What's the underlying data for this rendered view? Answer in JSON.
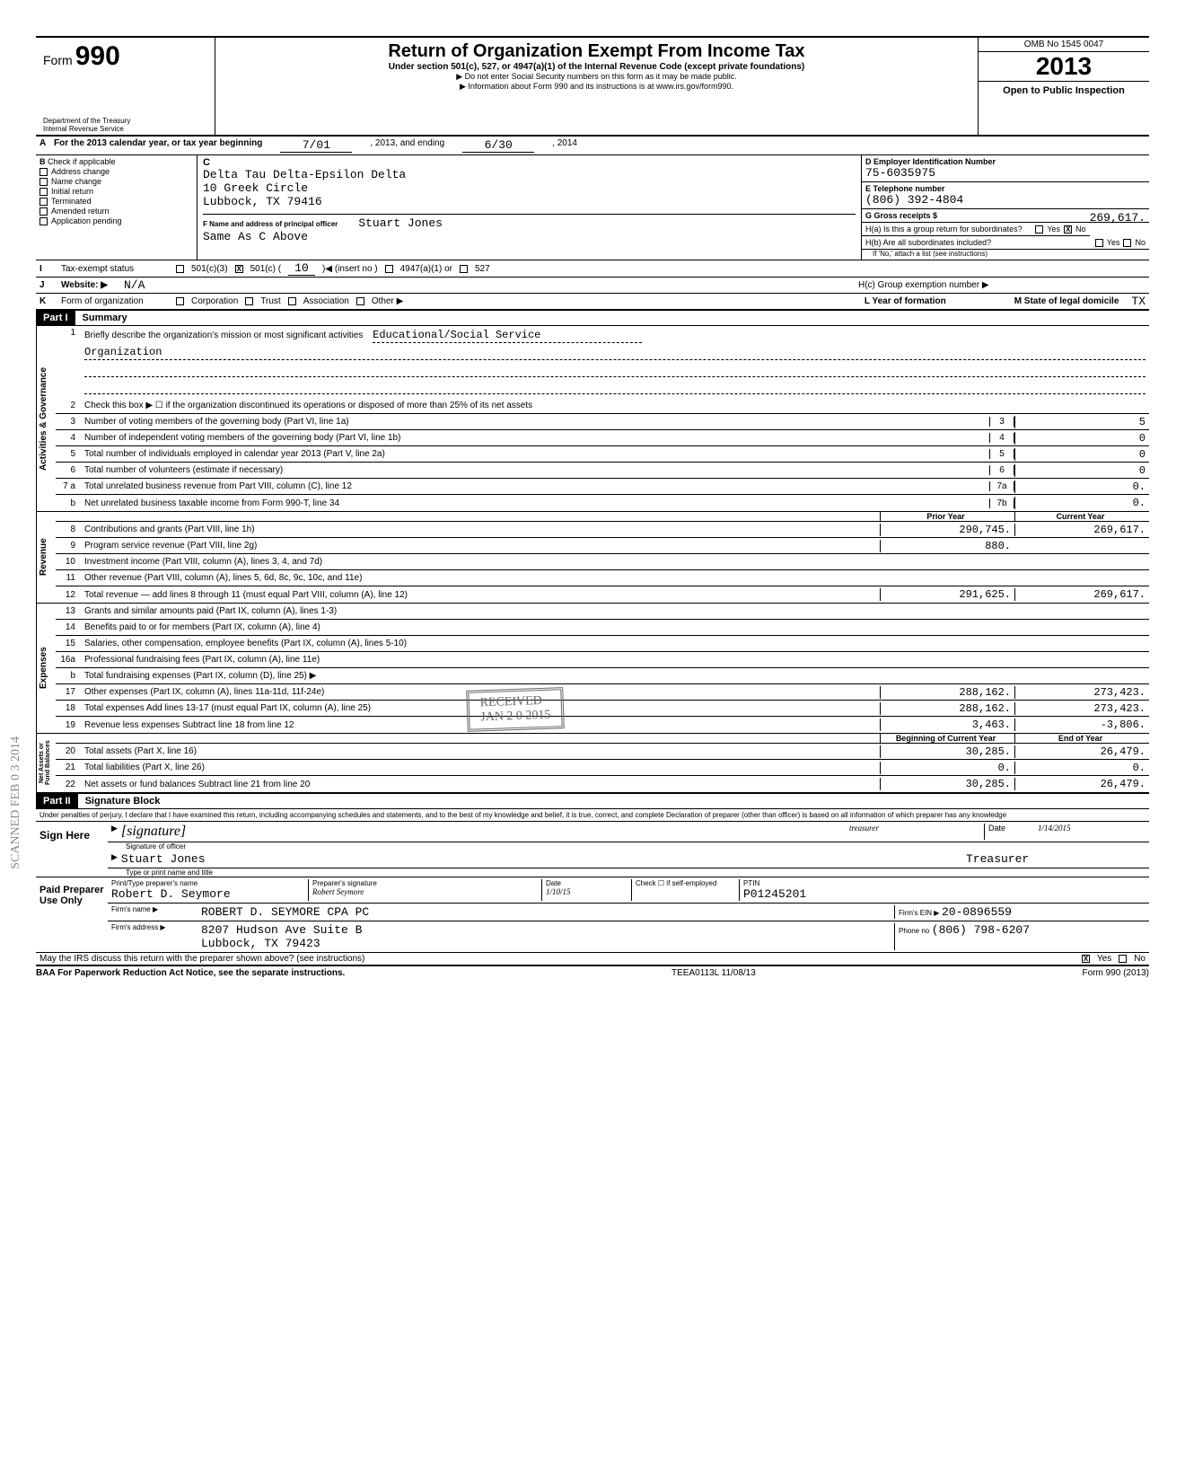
{
  "header": {
    "form_label": "Form",
    "form_number": "990",
    "dept": "Department of the Treasury\nInternal Revenue Service",
    "title": "Return of Organization Exempt From Income Tax",
    "subtitle": "Under section 501(c), 527, or 4947(a)(1) of the Internal Revenue Code (except private foundations)",
    "note1": "▶ Do not enter Social Security numbers on this form as it may be made public.",
    "note2": "▶ Information about Form 990 and its instructions is at www.irs.gov/form990.",
    "omb": "OMB No  1545 0047",
    "year": "2013",
    "open": "Open to Public Inspection"
  },
  "lineA": {
    "label": "For the 2013 calendar year, or tax year beginning",
    "begin": "7/01",
    "mid": ", 2013, and ending",
    "end": "6/30",
    "endyear": ", 2014"
  },
  "B": {
    "label": "Check if applicable",
    "items": [
      "Address change",
      "Name change",
      "Initial return",
      "Terminated",
      "Amended return",
      "Application pending"
    ]
  },
  "C": {
    "label": "C",
    "name": "Delta Tau Delta-Epsilon Delta",
    "addr1": "10 Greek Circle",
    "addr2": "Lubbock, TX 79416"
  },
  "D": {
    "label": "D  Employer Identification Number",
    "value": "75-6035975"
  },
  "E": {
    "label": "E  Telephone number",
    "value": "(806) 392-4804"
  },
  "G": {
    "label": "G  Gross receipts $",
    "value": "269,617."
  },
  "F": {
    "label": "F  Name and address of principal officer",
    "name": "Stuart Jones",
    "addr": "Same As C Above"
  },
  "H": {
    "a": "H(a) Is this a group return for subordinates?",
    "b": "H(b) Are all subordinates included?",
    "b_note": "If 'No,' attach a list  (see instructions)",
    "c": "H(c) Group exemption number ▶",
    "yes": "Yes",
    "no": "No"
  },
  "I": {
    "label": "Tax-exempt status",
    "opts": [
      "501(c)(3)",
      "501(c) (",
      "10",
      ")◀  (insert no )",
      "4947(a)(1) or",
      "527"
    ]
  },
  "J": {
    "label": "Website: ▶",
    "value": "N/A"
  },
  "K": {
    "form_of_org": "Form of organization",
    "opts": [
      "Corporation",
      "Trust",
      "Association",
      "Other ▶"
    ],
    "L": "L Year of formation",
    "M": "M State of legal domicile",
    "M_val": "TX"
  },
  "part1": {
    "label": "Part I",
    "title": "Summary"
  },
  "mission": {
    "prompt": "Briefly describe the organization's mission or most significant activities",
    "text1": "Educational/Social Service",
    "text2": "Organization"
  },
  "gov_lines": [
    {
      "no": "2",
      "txt": "Check this box ▶ ☐  if the organization discontinued its operations or disposed of more than 25% of its net assets"
    },
    {
      "no": "3",
      "txt": "Number of voting members of the governing body (Part VI, line 1a)",
      "box": "3",
      "val": "5"
    },
    {
      "no": "4",
      "txt": "Number of independent voting members of the governing body (Part VI, line 1b)",
      "box": "4",
      "val": "0"
    },
    {
      "no": "5",
      "txt": "Total number of individuals employed in calendar year 2013 (Part V, line 2a)",
      "box": "5",
      "val": "0"
    },
    {
      "no": "6",
      "txt": "Total number of volunteers (estimate if necessary)",
      "box": "6",
      "val": "0"
    },
    {
      "no": "7 a",
      "txt": "Total unrelated business revenue from Part VIII, column (C), line 12",
      "box": "7a",
      "val": "0."
    },
    {
      "no": "b",
      "txt": "Net unrelated business taxable income from Form 990-T, line 34",
      "box": "7b",
      "val": "0."
    }
  ],
  "cols": {
    "prior": "Prior Year",
    "current": "Current Year",
    "boy": "Beginning of Current Year",
    "eoy": "End of Year"
  },
  "revenue": [
    {
      "no": "8",
      "txt": "Contributions and grants (Part VIII, line 1h)",
      "p": "290,745.",
      "c": "269,617."
    },
    {
      "no": "9",
      "txt": "Program service revenue (Part VIII, line 2g)",
      "p": "880.",
      "c": ""
    },
    {
      "no": "10",
      "txt": "Investment income (Part VIII, column (A), lines 3, 4, and 7d)",
      "p": "",
      "c": ""
    },
    {
      "no": "11",
      "txt": "Other revenue (Part VIII, column (A), lines 5, 6d, 8c, 9c, 10c, and 11e)",
      "p": "",
      "c": ""
    },
    {
      "no": "12",
      "txt": "Total revenue — add lines 8 through 11 (must equal Part VIII, column (A), line 12)",
      "p": "291,625.",
      "c": "269,617."
    }
  ],
  "expenses": [
    {
      "no": "13",
      "txt": "Grants and similar amounts paid (Part IX, column (A), lines 1-3)",
      "p": "",
      "c": ""
    },
    {
      "no": "14",
      "txt": "Benefits paid to or for members (Part IX, column (A), line 4)",
      "p": "",
      "c": ""
    },
    {
      "no": "15",
      "txt": "Salaries, other compensation, employee benefits (Part IX, column (A), lines 5-10)",
      "p": "",
      "c": ""
    },
    {
      "no": "16a",
      "txt": "Professional fundraising fees (Part IX, column (A), line 11e)",
      "p": "",
      "c": ""
    },
    {
      "no": "b",
      "txt": "Total fundraising expenses (Part IX, column (D), line 25) ▶",
      "shade": true
    },
    {
      "no": "17",
      "txt": "Other expenses (Part IX, column (A), lines 11a-11d, 11f-24e)",
      "p": "288,162.",
      "c": "273,423."
    },
    {
      "no": "18",
      "txt": "Total expenses  Add lines 13-17 (must equal Part IX, column (A), line 25)",
      "p": "288,162.",
      "c": "273,423."
    },
    {
      "no": "19",
      "txt": "Revenue less expenses  Subtract line 18 from line 12",
      "p": "3,463.",
      "c": "-3,806."
    }
  ],
  "netassets": [
    {
      "no": "20",
      "txt": "Total assets (Part X, line 16)",
      "p": "30,285.",
      "c": "26,479."
    },
    {
      "no": "21",
      "txt": "Total liabilities (Part X, line 26)",
      "p": "0.",
      "c": "0."
    },
    {
      "no": "22",
      "txt": "Net assets or fund balances  Subtract line 21 from line 20",
      "p": "30,285.",
      "c": "26,479."
    }
  ],
  "side_labels": {
    "gov": "Activities & Governance",
    "rev": "Revenue",
    "exp": "Expenses",
    "net": "Net Assets or\nFund Balances"
  },
  "part2": {
    "label": "Part II",
    "title": "Signature Block"
  },
  "perjury": "Under penalties of perjury, I declare that I have examined this return, including accompanying schedules and statements, and to the best of my knowledge and belief, it is true, correct, and complete  Declaration of preparer (other than officer) is based on all information of which preparer has any knowledge",
  "sign": {
    "here": "Sign Here",
    "sig_label": "Signature of officer",
    "sig_role": "treasurer",
    "date": "1/14/2015",
    "date_label": "Date",
    "name": "Stuart Jones",
    "title": "Treasurer",
    "name_label": "Type or print name and title"
  },
  "preparer": {
    "label": "Paid Preparer Use Only",
    "print_label": "Print/Type preparer's name",
    "print_name": "Robert D. Seymore",
    "sig_label": "Preparer's signature",
    "sig": "Robert Seymore",
    "date_label": "Date",
    "date": "1/10/15",
    "check_label": "Check ☐ if self-employed",
    "ptin_label": "PTIN",
    "ptin": "P01245201",
    "firm_name_label": "Firm's name ▶",
    "firm_name": "ROBERT D. SEYMORE CPA PC",
    "firm_addr_label": "Firm's address ▶",
    "firm_addr1": "8207 Hudson Ave Suite B",
    "firm_addr2": "Lubbock, TX 79423",
    "ein_label": "Firm's EIN ▶",
    "ein": "20-0896559",
    "phone_label": "Phone no",
    "phone": "(806) 798-6207"
  },
  "discuss": {
    "q": "May the IRS discuss this return with the preparer shown above? (see instructions)",
    "yes": "Yes",
    "no": "No"
  },
  "footer": {
    "left": "BAA  For Paperwork Reduction Act Notice, see the separate instructions.",
    "mid": "TEEA0113L  11/08/13",
    "right": "Form 990 (2013)"
  },
  "stamps": {
    "received": "RECEIVED",
    "recv_date": "JAN 2 0 2015",
    "side": "SCANNED FEB 0 3 2014"
  }
}
